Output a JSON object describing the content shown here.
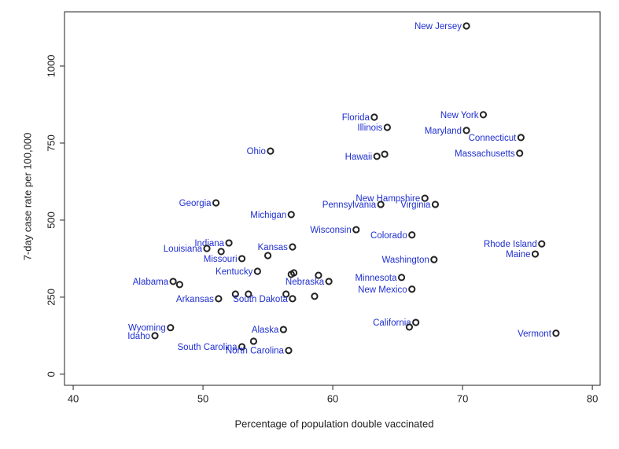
{
  "chart_data": {
    "type": "scatter",
    "x_label": "Percentage of population double vaccinated",
    "y_label": "7-day case rate per 100,000",
    "labels": [
      "New Jersey",
      "New York",
      "Maryland",
      "Connecticut",
      "Massachusetts",
      "Florida",
      "Illinois",
      "Hawaii",
      null,
      "Ohio",
      "New Hampshire",
      "Pennsylvania",
      "Virginia",
      "Georgia",
      "Michigan",
      "Wisconsin",
      "Colorado",
      "Rhode Island",
      "Maine",
      "Indiana",
      "Louisiana",
      null,
      "Kansas",
      "Missouri",
      null,
      "Washington",
      "Kentucky",
      null,
      null,
      null,
      "Nebraska",
      "Minnesota",
      "Alabama",
      null,
      "New Mexico",
      null,
      null,
      null,
      "Arkansas",
      "South Dakota",
      null,
      "California",
      null,
      "Alaska",
      "Wyoming",
      "Idaho",
      "Vermont",
      "South Carolina",
      null,
      "North Carolina"
    ],
    "x": [
      70.3,
      71.6,
      70.3,
      74.5,
      74.4,
      63.2,
      64.2,
      63.4,
      64.0,
      55.2,
      67.1,
      63.7,
      67.9,
      51.0,
      56.8,
      61.8,
      66.1,
      76.1,
      75.6,
      52.0,
      50.3,
      51.4,
      56.9,
      53.0,
      55.0,
      67.8,
      54.2,
      56.8,
      57.0,
      58.9,
      59.7,
      65.3,
      47.7,
      48.2,
      66.1,
      52.5,
      53.5,
      56.4,
      51.2,
      56.9,
      58.6,
      66.4,
      65.9,
      56.2,
      47.5,
      46.3,
      77.2,
      53.0,
      53.9,
      56.6
    ],
    "values": [
      1130,
      842,
      791,
      768,
      717,
      834,
      801,
      707,
      714,
      724,
      571,
      551,
      551,
      556,
      518,
      469,
      452,
      423,
      390,
      426,
      408,
      398,
      413,
      375,
      385,
      372,
      334,
      324,
      329,
      321,
      301,
      314,
      301,
      291,
      276,
      260,
      260,
      260,
      245,
      245,
      253,
      168,
      153,
      145,
      151,
      125,
      133,
      89,
      107,
      77
    ],
    "color": "#222222",
    "xlim": [
      39.33,
      80.6
    ],
    "ylim": [
      -36,
      1176
    ],
    "xticks": [
      40,
      50,
      60,
      70,
      80
    ],
    "yticks": [
      0,
      250,
      500,
      750,
      1000
    ],
    "grid": false
  }
}
